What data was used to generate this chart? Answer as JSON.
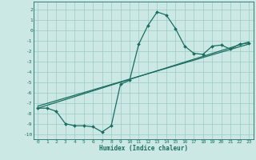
{
  "xlabel": "Humidex (Indice chaleur)",
  "bg_color": "#cce8e4",
  "grid_color": "#99ccc4",
  "line_color": "#1a6e60",
  "xlim": [
    -0.5,
    23.5
  ],
  "ylim": [
    -10.5,
    2.8
  ],
  "xticks": [
    0,
    1,
    2,
    3,
    4,
    5,
    6,
    7,
    8,
    9,
    10,
    11,
    12,
    13,
    14,
    15,
    16,
    17,
    18,
    19,
    20,
    21,
    22,
    23
  ],
  "yticks": [
    2,
    1,
    0,
    -1,
    -2,
    -3,
    -4,
    -5,
    -6,
    -7,
    -8,
    -9,
    -10
  ],
  "curve1_x": [
    0,
    1,
    2,
    3,
    4,
    5,
    6,
    7,
    8,
    9,
    10,
    11,
    12,
    13,
    14,
    15,
    16,
    17,
    18,
    19,
    20,
    21,
    22,
    23
  ],
  "curve1_y": [
    -7.5,
    -7.5,
    -7.8,
    -9.0,
    -9.2,
    -9.2,
    -9.3,
    -9.8,
    -9.2,
    -5.2,
    -4.8,
    -1.3,
    0.5,
    1.8,
    1.5,
    0.2,
    -1.5,
    -2.2,
    -2.3,
    -1.5,
    -1.4,
    -1.8,
    -1.3,
    -1.2
  ],
  "line1_x": [
    0,
    23
  ],
  "line1_y": [
    -7.5,
    -1.1
  ],
  "line2_x": [
    0,
    23
  ],
  "line2_y": [
    -7.3,
    -1.3
  ]
}
